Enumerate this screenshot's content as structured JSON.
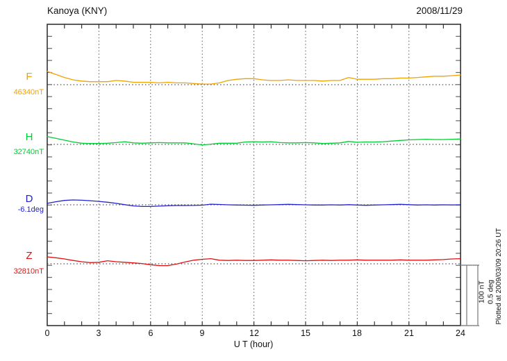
{
  "header": {
    "title": "Kanoya (KNY)",
    "date": "2008/11/29"
  },
  "x_axis": {
    "label": "U T (hour)",
    "ticks": [
      "0",
      "3",
      "6",
      "9",
      "12",
      "15",
      "18",
      "21",
      "24"
    ]
  },
  "scale_bar": {
    "line1": "100 nT",
    "line2": "0.5 deg"
  },
  "footer_note": "Plotted at 2009/03/09 20:26 UT",
  "colors": {
    "F": "#f2a200",
    "H": "#00cc33",
    "D": "#2222cc",
    "Z": "#e01010",
    "grid": "#555555",
    "baseline": "#222222",
    "frame": "#333333",
    "scale_bar": "#888888"
  },
  "chart_data": {
    "type": "line",
    "title": "Kanoya (KNY) magnetogram 2008/11/29",
    "xlabel": "U T (hour)",
    "x_range_hours": [
      0,
      24
    ],
    "x_tick_interval_hours": 3,
    "x_step_hours": 0.5,
    "grid": "dotted vertical lines every 3 h; dotted horizontal baseline per component",
    "legend_position": "left margin, one colored label per trace",
    "scale": {
      "nT_per_division": 100,
      "deg_per_division": 0.5
    },
    "series": [
      {
        "name": "F",
        "unit": "nT",
        "baseline_value": 46340,
        "baseline_label": "46340nT",
        "color": "#f2a200",
        "offsets": [
          22,
          17,
          12,
          8,
          6,
          5,
          5,
          5,
          7,
          6,
          4,
          4,
          4,
          3,
          4,
          3,
          3,
          2,
          1,
          1,
          3,
          7,
          9,
          10,
          10,
          8,
          7,
          7,
          8,
          7,
          7,
          7,
          6,
          7,
          7,
          12,
          9,
          9,
          9,
          10,
          10,
          11,
          11,
          12,
          13,
          14,
          14,
          15,
          16
        ]
      },
      {
        "name": "H",
        "unit": "nT",
        "baseline_value": 32740,
        "baseline_label": "32740nT",
        "color": "#00cc33",
        "offsets": [
          13,
          10,
          7,
          4,
          2,
          1.5,
          1.5,
          2,
          3,
          4.5,
          2.5,
          2,
          2.5,
          3,
          2.5,
          2.5,
          2.5,
          1,
          -1,
          0.5,
          2,
          2,
          2,
          4,
          4.5,
          4,
          4.5,
          3,
          2.5,
          2.5,
          3,
          2.5,
          1.5,
          2,
          2.5,
          5,
          3.5,
          4,
          4,
          4.5,
          5.5,
          6.5,
          7.5,
          8,
          8.5,
          8,
          8,
          8.5,
          9
        ]
      },
      {
        "name": "D",
        "unit": "deg",
        "baseline_value": -6.1,
        "baseline_label": "-6.1deg",
        "color": "#2222cc",
        "offsets": [
          0.012,
          0.025,
          0.036,
          0.04,
          0.038,
          0.034,
          0.028,
          0.021,
          0.012,
          0.001,
          -0.009,
          -0.014,
          -0.014,
          -0.011,
          -0.008,
          -0.006,
          -0.006,
          -0.005,
          -0.003,
          0.005,
          0.003,
          0,
          -0.002,
          -0.003,
          -0.004,
          -0.002,
          0,
          0.002,
          0.004,
          0.002,
          0,
          -0.002,
          -0.002,
          0,
          -0.002,
          0.001,
          -0.002,
          -0.004,
          -0.002,
          0,
          0.002,
          0.004,
          0.001,
          -0.002,
          0,
          -0.002,
          0,
          -0.001,
          0
        ]
      },
      {
        "name": "Z",
        "unit": "nT",
        "baseline_value": 32810,
        "baseline_label": "32810nT",
        "color": "#e01010",
        "offsets": [
          11.5,
          10,
          8,
          5.5,
          3.5,
          2,
          2.5,
          5,
          3.5,
          2.5,
          1.5,
          0.5,
          -1.5,
          -3,
          -3,
          -0.5,
          3,
          6,
          7.5,
          8.5,
          6,
          5.5,
          6,
          5.5,
          5.5,
          6,
          6.5,
          6,
          6,
          5.5,
          5,
          5.5,
          6,
          5.5,
          6,
          6,
          6.5,
          6,
          6,
          6,
          6,
          6.5,
          6,
          6,
          6,
          6.5,
          7,
          8,
          8.5
        ]
      }
    ]
  }
}
